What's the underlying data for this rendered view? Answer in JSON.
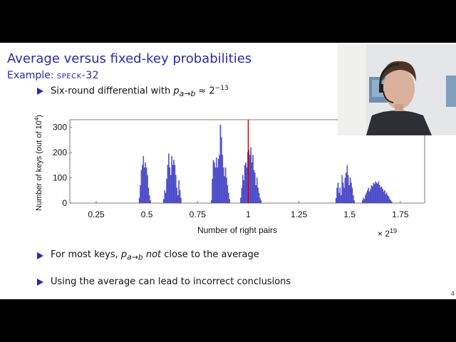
{
  "slide": {
    "title": "Average versus fixed-key probabilities",
    "subtitle_prefix": "Example: ",
    "subtitle_cipher": "speck-32",
    "bullets": [
      {
        "pre": "Six-round differential with ",
        "math_var": "p",
        "math_sub": "a→b",
        "post": " ≈ 2",
        "post_sup": "−13"
      },
      {
        "pre": "For most keys, ",
        "math_var": "p",
        "math_sub": "a→b",
        "emph": " not",
        "post": " close to the average"
      },
      {
        "text": "Using the average can lead to incorrect conclusions"
      }
    ],
    "page_number": "4",
    "colors": {
      "title": "#2a2aa8",
      "bullet": "#2a2aa8",
      "bars": "#5a5ae0",
      "average_line": "#c00000"
    }
  },
  "chart_data": {
    "type": "bar",
    "xlabel": "Number of right pairs",
    "ylabel_text": "Number of keys (out of 10",
    "ylabel_sup": "4",
    "ylabel_end": ")",
    "x_scale_label": "× 2",
    "x_scale_sup": "19",
    "xlim": [
      0.12,
      1.87
    ],
    "ylim": [
      0,
      330
    ],
    "xticks": [
      0.25,
      0.5,
      0.75,
      1,
      1.25,
      1.5,
      1.75
    ],
    "xtick_labels": [
      "0.25",
      "0.5",
      "0.75",
      "1",
      "1.25",
      "1.5",
      "1.75"
    ],
    "yticks": [
      0,
      100,
      200,
      300
    ],
    "ytick_labels": [
      "0",
      "100",
      "200",
      "300"
    ],
    "average_line_x": 1.0,
    "bins": [
      {
        "x": 0.463,
        "y": 20
      },
      {
        "x": 0.468,
        "y": 70
      },
      {
        "x": 0.473,
        "y": 130
      },
      {
        "x": 0.478,
        "y": 150
      },
      {
        "x": 0.483,
        "y": 185
      },
      {
        "x": 0.488,
        "y": 140
      },
      {
        "x": 0.493,
        "y": 160
      },
      {
        "x": 0.498,
        "y": 140
      },
      {
        "x": 0.503,
        "y": 110
      },
      {
        "x": 0.508,
        "y": 60
      },
      {
        "x": 0.513,
        "y": 30
      },
      {
        "x": 0.518,
        "y": 10
      },
      {
        "x": 0.583,
        "y": 15
      },
      {
        "x": 0.588,
        "y": 50
      },
      {
        "x": 0.593,
        "y": 40
      },
      {
        "x": 0.598,
        "y": 95
      },
      {
        "x": 0.603,
        "y": 150
      },
      {
        "x": 0.608,
        "y": 195
      },
      {
        "x": 0.613,
        "y": 140
      },
      {
        "x": 0.618,
        "y": 110
      },
      {
        "x": 0.623,
        "y": 185
      },
      {
        "x": 0.628,
        "y": 150
      },
      {
        "x": 0.633,
        "y": 170
      },
      {
        "x": 0.638,
        "y": 150
      },
      {
        "x": 0.643,
        "y": 110
      },
      {
        "x": 0.648,
        "y": 60
      },
      {
        "x": 0.653,
        "y": 30
      },
      {
        "x": 0.658,
        "y": 90
      },
      {
        "x": 0.663,
        "y": 50
      },
      {
        "x": 0.668,
        "y": 20
      },
      {
        "x": 0.818,
        "y": 10
      },
      {
        "x": 0.823,
        "y": 95
      },
      {
        "x": 0.828,
        "y": 170
      },
      {
        "x": 0.833,
        "y": 160
      },
      {
        "x": 0.838,
        "y": 140
      },
      {
        "x": 0.843,
        "y": 180
      },
      {
        "x": 0.848,
        "y": 140
      },
      {
        "x": 0.853,
        "y": 175
      },
      {
        "x": 0.858,
        "y": 190
      },
      {
        "x": 0.863,
        "y": 310
      },
      {
        "x": 0.868,
        "y": 260
      },
      {
        "x": 0.873,
        "y": 190
      },
      {
        "x": 0.878,
        "y": 140
      },
      {
        "x": 0.883,
        "y": 105
      },
      {
        "x": 0.888,
        "y": 140
      },
      {
        "x": 0.893,
        "y": 100
      },
      {
        "x": 0.898,
        "y": 70
      },
      {
        "x": 0.903,
        "y": 40
      },
      {
        "x": 0.908,
        "y": 15
      },
      {
        "x": 0.963,
        "y": 20
      },
      {
        "x": 0.968,
        "y": 60
      },
      {
        "x": 0.973,
        "y": 110
      },
      {
        "x": 0.978,
        "y": 90
      },
      {
        "x": 0.983,
        "y": 150
      },
      {
        "x": 0.988,
        "y": 160
      },
      {
        "x": 0.993,
        "y": 140
      },
      {
        "x": 0.998,
        "y": 200
      },
      {
        "x": 1.003,
        "y": 210
      },
      {
        "x": 1.008,
        "y": 190
      },
      {
        "x": 1.013,
        "y": 220
      },
      {
        "x": 1.018,
        "y": 160
      },
      {
        "x": 1.023,
        "y": 190
      },
      {
        "x": 1.028,
        "y": 130
      },
      {
        "x": 1.033,
        "y": 120
      },
      {
        "x": 1.038,
        "y": 70
      },
      {
        "x": 1.043,
        "y": 100
      },
      {
        "x": 1.048,
        "y": 60
      },
      {
        "x": 1.053,
        "y": 40
      },
      {
        "x": 1.058,
        "y": 20
      },
      {
        "x": 1.063,
        "y": 10
      },
      {
        "x": 1.433,
        "y": 20
      },
      {
        "x": 1.438,
        "y": 60
      },
      {
        "x": 1.443,
        "y": 80
      },
      {
        "x": 1.448,
        "y": 40
      },
      {
        "x": 1.453,
        "y": 60
      },
      {
        "x": 1.458,
        "y": 30
      },
      {
        "x": 1.463,
        "y": 110
      },
      {
        "x": 1.468,
        "y": 80
      },
      {
        "x": 1.473,
        "y": 60
      },
      {
        "x": 1.478,
        "y": 100
      },
      {
        "x": 1.483,
        "y": 120
      },
      {
        "x": 1.488,
        "y": 150
      },
      {
        "x": 1.493,
        "y": 110
      },
      {
        "x": 1.498,
        "y": 70
      },
      {
        "x": 1.503,
        "y": 100
      },
      {
        "x": 1.508,
        "y": 80
      },
      {
        "x": 1.513,
        "y": 60
      },
      {
        "x": 1.518,
        "y": 30
      },
      {
        "x": 1.523,
        "y": 10
      },
      {
        "x": 1.563,
        "y": 10
      },
      {
        "x": 1.568,
        "y": 20
      },
      {
        "x": 1.573,
        "y": 15
      },
      {
        "x": 1.578,
        "y": 30
      },
      {
        "x": 1.583,
        "y": 40
      },
      {
        "x": 1.588,
        "y": 50
      },
      {
        "x": 1.593,
        "y": 60
      },
      {
        "x": 1.598,
        "y": 45
      },
      {
        "x": 1.603,
        "y": 55
      },
      {
        "x": 1.608,
        "y": 70
      },
      {
        "x": 1.613,
        "y": 65
      },
      {
        "x": 1.618,
        "y": 80
      },
      {
        "x": 1.623,
        "y": 75
      },
      {
        "x": 1.628,
        "y": 85
      },
      {
        "x": 1.633,
        "y": 80
      },
      {
        "x": 1.638,
        "y": 75
      },
      {
        "x": 1.643,
        "y": 85
      },
      {
        "x": 1.648,
        "y": 70
      },
      {
        "x": 1.653,
        "y": 60
      },
      {
        "x": 1.658,
        "y": 65
      },
      {
        "x": 1.663,
        "y": 55
      },
      {
        "x": 1.668,
        "y": 45
      },
      {
        "x": 1.673,
        "y": 50
      },
      {
        "x": 1.678,
        "y": 35
      },
      {
        "x": 1.683,
        "y": 40
      },
      {
        "x": 1.688,
        "y": 30
      },
      {
        "x": 1.693,
        "y": 25
      },
      {
        "x": 1.698,
        "y": 15
      },
      {
        "x": 1.703,
        "y": 10
      },
      {
        "x": 1.708,
        "y": 5
      }
    ]
  }
}
